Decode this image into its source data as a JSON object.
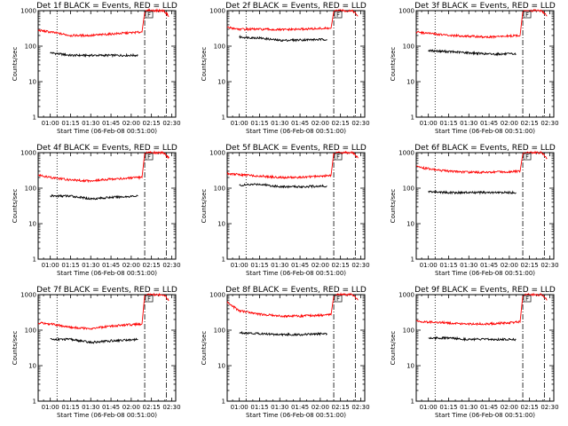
{
  "page_size": [
    640,
    480
  ],
  "chart_data": [
    {
      "type": "line",
      "title": "Det 1f BLACK = Events, RED = LLD",
      "xlabel": "Start Time (06-Feb-08 00:51:00)",
      "ylabel": "Counts/sec",
      "yscale": "log",
      "ylim": [
        1,
        1000
      ],
      "xlim": [
        "00:51",
        "02:33"
      ],
      "xticks": [
        "01:00",
        "01:15",
        "01:30",
        "01:45",
        "02:00",
        "02:15",
        "02:30"
      ],
      "yticks": [
        "1",
        "10",
        "100",
        "1000"
      ],
      "marker_label": "F",
      "dotted_line": "01:05",
      "dashdot_lines": [
        "02:10",
        "02:26"
      ],
      "series": [
        {
          "name": "Events",
          "color": "#000000",
          "x": [
            "01:00",
            "01:15",
            "01:30",
            "01:45",
            "02:05"
          ],
          "values": [
            65,
            55,
            55,
            55,
            55
          ]
        },
        {
          "name": "LLD",
          "color": "#ff0000",
          "x": [
            "00:51",
            "01:00",
            "01:15",
            "01:30",
            "01:45",
            "02:08",
            "02:10",
            "02:12",
            "02:24",
            "02:28"
          ],
          "values": [
            280,
            250,
            200,
            200,
            220,
            250,
            900,
            1000,
            1000,
            700
          ]
        }
      ]
    },
    {
      "type": "line",
      "title": "Det 2f BLACK = Events, RED = LLD",
      "xlabel": "Start Time (06-Feb-08 00:51:00)",
      "ylabel": "Counts/sec",
      "yscale": "log",
      "ylim": [
        1,
        1000
      ],
      "xlim": [
        "00:51",
        "02:33"
      ],
      "xticks": [
        "01:00",
        "01:15",
        "01:30",
        "01:45",
        "02:00",
        "02:15",
        "02:30"
      ],
      "yticks": [
        "1",
        "10",
        "100",
        "1000"
      ],
      "marker_label": "F",
      "dotted_line": "01:05",
      "dashdot_lines": [
        "02:10",
        "02:26"
      ],
      "series": [
        {
          "name": "Events",
          "color": "#000000",
          "x": [
            "01:00",
            "01:15",
            "01:30",
            "01:45",
            "02:05"
          ],
          "values": [
            180,
            170,
            145,
            150,
            155
          ]
        },
        {
          "name": "LLD",
          "color": "#ff0000",
          "x": [
            "00:51",
            "01:00",
            "01:15",
            "01:30",
            "01:45",
            "02:08",
            "02:10",
            "02:12",
            "02:24",
            "02:28"
          ],
          "values": [
            340,
            300,
            300,
            290,
            300,
            320,
            900,
            1000,
            1000,
            700
          ]
        }
      ]
    },
    {
      "type": "line",
      "title": "Det 3f BLACK = Events, RED = LLD",
      "xlabel": "Start Time (06-Feb-08 00:51:00)",
      "ylabel": "Counts/sec",
      "yscale": "log",
      "ylim": [
        1,
        1000
      ],
      "xlim": [
        "00:51",
        "02:33"
      ],
      "xticks": [
        "01:00",
        "01:15",
        "01:30",
        "01:45",
        "02:00",
        "02:15",
        "02:30"
      ],
      "yticks": [
        "1",
        "10",
        "100",
        "1000"
      ],
      "marker_label": "F",
      "dotted_line": "01:05",
      "dashdot_lines": [
        "02:10",
        "02:26"
      ],
      "series": [
        {
          "name": "Events",
          "color": "#000000",
          "x": [
            "01:00",
            "01:15",
            "01:30",
            "01:45",
            "02:05"
          ],
          "values": [
            75,
            70,
            65,
            60,
            60
          ]
        },
        {
          "name": "LLD",
          "color": "#ff0000",
          "x": [
            "00:51",
            "01:00",
            "01:15",
            "01:30",
            "01:45",
            "02:08",
            "02:10",
            "02:12",
            "02:24",
            "02:28"
          ],
          "values": [
            250,
            230,
            200,
            190,
            180,
            200,
            900,
            1000,
            1000,
            700
          ]
        }
      ]
    },
    {
      "type": "line",
      "title": "Det 4f BLACK = Events, RED = LLD",
      "xlabel": "Start Time (06-Feb-08 00:51:00)",
      "ylabel": "Counts/sec",
      "yscale": "log",
      "ylim": [
        1,
        1000
      ],
      "xlim": [
        "00:51",
        "02:33"
      ],
      "xticks": [
        "01:00",
        "01:15",
        "01:30",
        "01:45",
        "02:00",
        "02:15",
        "02:30"
      ],
      "yticks": [
        "1",
        "10",
        "100",
        "1000"
      ],
      "marker_label": "F",
      "dotted_line": "01:05",
      "dashdot_lines": [
        "02:10",
        "02:26"
      ],
      "series": [
        {
          "name": "Events",
          "color": "#000000",
          "x": [
            "01:00",
            "01:15",
            "01:30",
            "01:45",
            "02:05"
          ],
          "values": [
            60,
            60,
            50,
            55,
            60
          ]
        },
        {
          "name": "LLD",
          "color": "#ff0000",
          "x": [
            "00:51",
            "01:00",
            "01:15",
            "01:30",
            "01:45",
            "02:08",
            "02:10",
            "02:12",
            "02:24",
            "02:28"
          ],
          "values": [
            230,
            200,
            170,
            160,
            180,
            200,
            900,
            1000,
            1000,
            700
          ]
        }
      ]
    },
    {
      "type": "line",
      "title": "Det 5f BLACK = Events, RED = LLD",
      "xlabel": "Start Time (06-Feb-08 00:51:00)",
      "ylabel": "Counts/sec",
      "yscale": "log",
      "ylim": [
        1,
        1000
      ],
      "xlim": [
        "00:51",
        "02:33"
      ],
      "xticks": [
        "01:00",
        "01:15",
        "01:30",
        "01:45",
        "02:00",
        "02:15",
        "02:30"
      ],
      "yticks": [
        "1",
        "10",
        "100",
        "1000"
      ],
      "marker_label": "F",
      "dotted_line": "01:05",
      "dashdot_lines": [
        "02:10",
        "02:26"
      ],
      "series": [
        {
          "name": "Events",
          "color": "#000000",
          "x": [
            "01:00",
            "01:15",
            "01:30",
            "01:45",
            "02:05"
          ],
          "values": [
            120,
            130,
            110,
            110,
            115
          ]
        },
        {
          "name": "LLD",
          "color": "#ff0000",
          "x": [
            "00:51",
            "01:00",
            "01:15",
            "01:30",
            "01:45",
            "02:08",
            "02:10",
            "02:12",
            "02:24",
            "02:28"
          ],
          "values": [
            260,
            240,
            220,
            200,
            200,
            230,
            900,
            1000,
            1000,
            700
          ]
        }
      ]
    },
    {
      "type": "line",
      "title": "Det 6f BLACK = Events, RED = LLD",
      "xlabel": "Start Time (06-Feb-08 00:51:00)",
      "ylabel": "Counts/sec",
      "yscale": "log",
      "ylim": [
        1,
        1000
      ],
      "xlim": [
        "00:51",
        "02:33"
      ],
      "xticks": [
        "01:00",
        "01:15",
        "01:30",
        "01:45",
        "02:00",
        "02:15",
        "02:30"
      ],
      "yticks": [
        "1",
        "10",
        "100",
        "1000"
      ],
      "marker_label": "F",
      "dotted_line": "01:05",
      "dashdot_lines": [
        "02:10",
        "02:26"
      ],
      "series": [
        {
          "name": "Events",
          "color": "#000000",
          "x": [
            "01:00",
            "01:15",
            "01:30",
            "01:45",
            "02:05"
          ],
          "values": [
            80,
            75,
            75,
            75,
            75
          ]
        },
        {
          "name": "LLD",
          "color": "#ff0000",
          "x": [
            "00:51",
            "01:00",
            "01:15",
            "01:30",
            "01:45",
            "02:08",
            "02:10",
            "02:12",
            "02:24",
            "02:28"
          ],
          "values": [
            400,
            350,
            300,
            280,
            280,
            300,
            900,
            1000,
            1000,
            700
          ]
        }
      ]
    },
    {
      "type": "line",
      "title": "Det 7f BLACK = Events, RED = LLD",
      "xlabel": "Start Time (06-Feb-08 00:51:00)",
      "ylabel": "Counts/sec",
      "yscale": "log",
      "ylim": [
        1,
        1000
      ],
      "xlim": [
        "00:51",
        "02:33"
      ],
      "xticks": [
        "01:00",
        "01:15",
        "01:30",
        "01:45",
        "02:00",
        "02:15",
        "02:30"
      ],
      "yticks": [
        "1",
        "10",
        "100",
        "1000"
      ],
      "marker_label": "F",
      "dotted_line": "01:05",
      "dashdot_lines": [
        "02:10",
        "02:26"
      ],
      "series": [
        {
          "name": "Events",
          "color": "#000000",
          "x": [
            "01:00",
            "01:15",
            "01:30",
            "01:45",
            "02:05"
          ],
          "values": [
            55,
            55,
            45,
            50,
            55
          ]
        },
        {
          "name": "LLD",
          "color": "#ff0000",
          "x": [
            "00:51",
            "01:00",
            "01:15",
            "01:30",
            "01:45",
            "02:08",
            "02:10",
            "02:12",
            "02:24",
            "02:28"
          ],
          "values": [
            160,
            150,
            120,
            110,
            130,
            150,
            900,
            1000,
            1000,
            700
          ]
        }
      ]
    },
    {
      "type": "line",
      "title": "Det 8f BLACK = Events, RED = LLD",
      "xlabel": "Start Time (06-Feb-08 00:51:00)",
      "ylabel": "Counts/sec",
      "yscale": "log",
      "ylim": [
        1,
        1000
      ],
      "xlim": [
        "00:51",
        "02:33"
      ],
      "xticks": [
        "01:00",
        "01:15",
        "01:30",
        "01:45",
        "02:00",
        "02:15",
        "02:30"
      ],
      "yticks": [
        "1",
        "10",
        "100",
        "1000"
      ],
      "marker_label": "F",
      "dotted_line": "01:05",
      "dashdot_lines": [
        "02:10",
        "02:26"
      ],
      "series": [
        {
          "name": "Events",
          "color": "#000000",
          "x": [
            "01:00",
            "01:15",
            "01:30",
            "01:45",
            "02:05"
          ],
          "values": [
            85,
            80,
            75,
            75,
            80
          ]
        },
        {
          "name": "LLD",
          "color": "#ff0000",
          "x": [
            "00:51",
            "01:00",
            "01:15",
            "01:30",
            "01:45",
            "02:08",
            "02:10",
            "02:12",
            "02:24",
            "02:28"
          ],
          "values": [
            600,
            350,
            280,
            250,
            250,
            270,
            900,
            1000,
            1000,
            700
          ]
        }
      ]
    },
    {
      "type": "line",
      "title": "Det 9f BLACK = Events, RED = LLD",
      "xlabel": "Start Time (06-Feb-08 00:51:00)",
      "ylabel": "Counts/sec",
      "yscale": "log",
      "ylim": [
        1,
        1000
      ],
      "xlim": [
        "00:51",
        "02:33"
      ],
      "xticks": [
        "01:00",
        "01:15",
        "01:30",
        "01:45",
        "02:00",
        "02:15",
        "02:30"
      ],
      "yticks": [
        "1",
        "10",
        "100",
        "1000"
      ],
      "marker_label": "F",
      "dotted_line": "01:05",
      "dashdot_lines": [
        "02:10",
        "02:26"
      ],
      "series": [
        {
          "name": "Events",
          "color": "#000000",
          "x": [
            "01:00",
            "01:15",
            "01:30",
            "01:45",
            "02:05"
          ],
          "values": [
            60,
            60,
            55,
            55,
            55
          ]
        },
        {
          "name": "LLD",
          "color": "#ff0000",
          "x": [
            "00:51",
            "01:00",
            "01:15",
            "01:30",
            "01:45",
            "02:08",
            "02:10",
            "02:12",
            "02:24",
            "02:28"
          ],
          "values": [
            180,
            170,
            160,
            150,
            150,
            170,
            900,
            1000,
            1000,
            700
          ]
        }
      ]
    }
  ]
}
